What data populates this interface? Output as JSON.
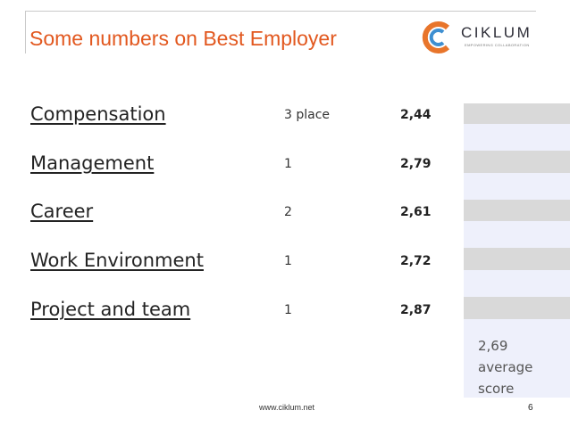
{
  "slide": {
    "title": "Some numbers on Best Employer",
    "logo_text": "CIKLUM",
    "logo_tagline": "EMPOWERING COLLABORATION"
  },
  "categories": [
    {
      "label": "Compensation",
      "place": "3 place",
      "score": "2,44"
    },
    {
      "label": "Management",
      "place": "1",
      "score": "2,79"
    },
    {
      "label": "Career",
      "place": "2",
      "score": "2,61"
    },
    {
      "label": "Work Environment",
      "place": "1",
      "score": "2,72"
    },
    {
      "label": "Project and team",
      "place": "1",
      "score": "2,87"
    }
  ],
  "summary": {
    "text": "2,69 average score"
  },
  "footer": {
    "url": "www.ciklum.net",
    "page": "6"
  },
  "colors": {
    "title": "#e2581f",
    "logo_orange": "#e8752b",
    "logo_blue": "#3e8fd1",
    "band_gray": "#d9d9d9",
    "band_blue": "#eef0fb"
  }
}
